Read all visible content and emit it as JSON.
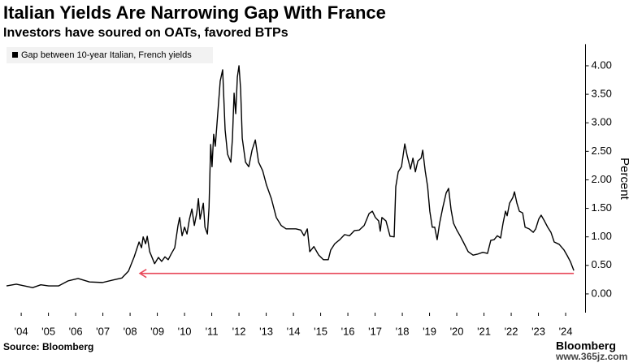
{
  "chart_data": {
    "type": "line",
    "title": "Italian Yields Are Narrowing Gap With France",
    "subtitle": "Investors have soured on OATs, favored BTPs",
    "y_label": "Percent",
    "source": "Source: Bloomberg",
    "brand": "Bloomberg",
    "watermark": "www.365jz.com",
    "legend": "top-left",
    "grid": false,
    "xlim": [
      2003.4,
      2024.7
    ],
    "ylim": [
      -0.3,
      4.35
    ],
    "xticks": [
      {
        "value": 2004,
        "label": "'04"
      },
      {
        "value": 2005,
        "label": "'05"
      },
      {
        "value": 2006,
        "label": "'06"
      },
      {
        "value": 2007,
        "label": "'07"
      },
      {
        "value": 2008,
        "label": "'08"
      },
      {
        "value": 2009,
        "label": "'09"
      },
      {
        "value": 2010,
        "label": "'10"
      },
      {
        "value": 2011,
        "label": "'11"
      },
      {
        "value": 2012,
        "label": "'12"
      },
      {
        "value": 2013,
        "label": "'13"
      },
      {
        "value": 2014,
        "label": "'14"
      },
      {
        "value": 2015,
        "label": "'15"
      },
      {
        "value": 2016,
        "label": "'16"
      },
      {
        "value": 2017,
        "label": "'17"
      },
      {
        "value": 2018,
        "label": "'18"
      },
      {
        "value": 2019,
        "label": "'19"
      },
      {
        "value": 2020,
        "label": "'20"
      },
      {
        "value": 2021,
        "label": "'21"
      },
      {
        "value": 2022,
        "label": "'22"
      },
      {
        "value": 2023,
        "label": "'23"
      },
      {
        "value": 2024,
        "label": "'24"
      }
    ],
    "yticks": [
      {
        "value": 0,
        "label": "0.00"
      },
      {
        "value": 0.5,
        "label": "0.50"
      },
      {
        "value": 1,
        "label": "1.00"
      },
      {
        "value": 1.5,
        "label": "1.50"
      },
      {
        "value": 2,
        "label": "2.00"
      },
      {
        "value": 2.5,
        "label": "2.50"
      },
      {
        "value": 3,
        "label": "3.00"
      },
      {
        "value": 3.5,
        "label": "3.50"
      },
      {
        "value": 4,
        "label": "4.00"
      }
    ],
    "arrow": {
      "value": 0.36,
      "from": 2024.3,
      "to": 2008.36,
      "color": "#e8495a"
    },
    "x": [
      2003.46,
      2003.82,
      2004.42,
      2004.72,
      2005.01,
      2005.37,
      2005.73,
      2006.09,
      2006.51,
      2006.99,
      2007.34,
      2007.7,
      2007.94,
      2008.15,
      2008.33,
      2008.42,
      2008.48,
      2008.57,
      2008.63,
      2008.72,
      2008.9,
      2009.04,
      2009.16,
      2009.28,
      2009.4,
      2009.52,
      2009.64,
      2009.76,
      2009.82,
      2009.91,
      2010.0,
      2010.09,
      2010.18,
      2010.27,
      2010.36,
      2010.45,
      2010.51,
      2010.57,
      2010.69,
      2010.75,
      2010.84,
      2010.9,
      2010.96,
      2011.01,
      2011.07,
      2011.13,
      2011.22,
      2011.31,
      2011.4,
      2011.49,
      2011.58,
      2011.7,
      2011.76,
      2011.82,
      2011.88,
      2011.94,
      2012.0,
      2012.06,
      2012.12,
      2012.24,
      2012.36,
      2012.48,
      2012.6,
      2012.72,
      2012.87,
      2013.01,
      2013.19,
      2013.37,
      2013.55,
      2013.73,
      2013.91,
      2014.09,
      2014.27,
      2014.39,
      2014.51,
      2014.6,
      2014.75,
      2014.93,
      2015.1,
      2015.28,
      2015.37,
      2015.52,
      2015.7,
      2015.88,
      2016.06,
      2016.24,
      2016.42,
      2016.6,
      2016.78,
      2016.9,
      2017.01,
      2017.13,
      2017.19,
      2017.25,
      2017.4,
      2017.55,
      2017.7,
      2017.76,
      2017.85,
      2017.97,
      2018.09,
      2018.18,
      2018.3,
      2018.39,
      2018.48,
      2018.57,
      2018.69,
      2018.75,
      2018.84,
      2018.93,
      2019.01,
      2019.1,
      2019.19,
      2019.28,
      2019.37,
      2019.49,
      2019.61,
      2019.7,
      2019.79,
      2019.88,
      2020.0,
      2020.12,
      2020.24,
      2020.42,
      2020.6,
      2020.78,
      2020.96,
      2021.13,
      2021.25,
      2021.37,
      2021.49,
      2021.61,
      2021.7,
      2021.79,
      2021.85,
      2021.94,
      2022.06,
      2022.12,
      2022.21,
      2022.3,
      2022.42,
      2022.51,
      2022.66,
      2022.81,
      2022.9,
      2023.01,
      2023.1,
      2023.22,
      2023.34,
      2023.46,
      2023.58,
      2023.76,
      2023.94,
      2024.06,
      2024.18,
      2024.3
    ],
    "series": [
      {
        "name": "Gap between 10-year Italian, French yields",
        "color": "#000000",
        "values": [
          0.14,
          0.17,
          0.11,
          0.16,
          0.14,
          0.14,
          0.23,
          0.27,
          0.21,
          0.2,
          0.24,
          0.28,
          0.4,
          0.65,
          0.91,
          0.81,
          1.0,
          0.88,
          1.01,
          0.74,
          0.53,
          0.64,
          0.57,
          0.65,
          0.6,
          0.71,
          0.81,
          1.2,
          1.34,
          1.02,
          1.17,
          1.05,
          1.31,
          1.49,
          1.2,
          1.42,
          1.67,
          1.31,
          1.59,
          1.17,
          1.05,
          1.52,
          2.62,
          2.23,
          2.8,
          2.59,
          3.16,
          3.73,
          3.93,
          2.88,
          2.45,
          2.31,
          2.73,
          3.52,
          3.16,
          3.8,
          4.0,
          3.59,
          2.73,
          2.31,
          2.23,
          2.52,
          2.7,
          2.31,
          2.16,
          1.91,
          1.67,
          1.34,
          1.2,
          1.14,
          1.14,
          1.14,
          1.12,
          1.02,
          1.14,
          0.74,
          0.83,
          0.68,
          0.6,
          0.6,
          0.77,
          0.88,
          0.95,
          1.04,
          1.02,
          1.11,
          1.12,
          1.2,
          1.41,
          1.45,
          1.34,
          1.28,
          1.1,
          1.34,
          1.28,
          1.01,
          1.0,
          1.88,
          2.14,
          2.23,
          2.63,
          2.42,
          2.19,
          2.38,
          2.14,
          2.33,
          2.38,
          2.52,
          2.16,
          1.88,
          1.45,
          1.17,
          1.17,
          0.95,
          1.24,
          1.52,
          1.77,
          1.85,
          1.48,
          1.24,
          1.12,
          1.02,
          0.91,
          0.74,
          0.68,
          0.7,
          0.73,
          0.71,
          0.94,
          0.95,
          1.02,
          0.98,
          1.24,
          1.45,
          1.37,
          1.59,
          1.69,
          1.79,
          1.59,
          1.45,
          1.42,
          1.17,
          1.14,
          1.08,
          1.14,
          1.31,
          1.38,
          1.28,
          1.17,
          1.08,
          0.91,
          0.87,
          0.77,
          0.67,
          0.56,
          0.41
        ]
      }
    ]
  }
}
